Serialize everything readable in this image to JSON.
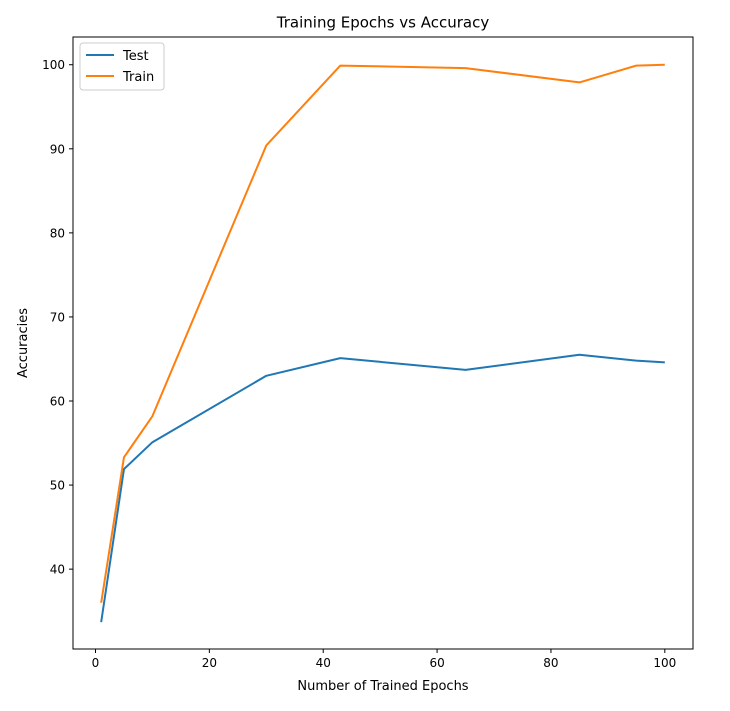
{
  "chart_data": {
    "type": "line",
    "title": "Training Epochs vs Accuracy",
    "xlabel": "Number of Trained Epochs",
    "ylabel": "Accuracies",
    "xlim": [
      -3.95,
      104.95
    ],
    "ylim": [
      30.5,
      103.3
    ],
    "xticks": [
      0,
      20,
      40,
      60,
      80,
      100
    ],
    "yticks": [
      40,
      50,
      60,
      70,
      80,
      90,
      100
    ],
    "grid": false,
    "legend_position": "upper-left",
    "series": [
      {
        "name": "Test",
        "color": "#1f77b4",
        "x": [
          1,
          5,
          10,
          30,
          43,
          65,
          85,
          95,
          100
        ],
        "y": [
          33.7,
          51.9,
          55.1,
          63.0,
          65.1,
          63.7,
          65.5,
          64.8,
          64.6
        ]
      },
      {
        "name": "Train",
        "color": "#ff7f0e",
        "x": [
          1,
          5,
          10,
          30,
          43,
          65,
          85,
          95,
          100
        ],
        "y": [
          36.0,
          53.3,
          58.2,
          90.4,
          99.9,
          99.6,
          97.9,
          99.9,
          100.0
        ]
      }
    ]
  }
}
